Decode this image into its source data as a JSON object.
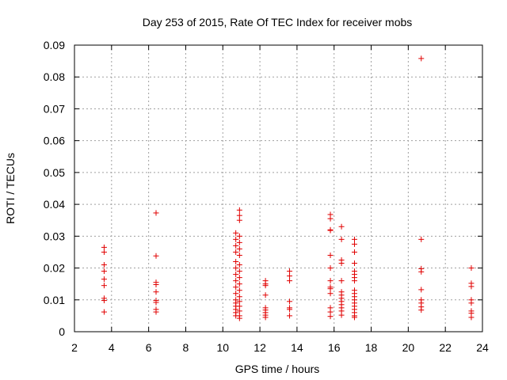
{
  "chart_data": {
    "type": "scatter",
    "title": "Day 253 of 2015, Rate Of TEC Index for receiver mobs",
    "xlabel": "GPS time / hours",
    "ylabel": "ROTI / TECUs",
    "xlim": [
      2,
      24
    ],
    "ylim": [
      0,
      0.09
    ],
    "x_ticks": [
      2,
      4,
      6,
      8,
      10,
      12,
      14,
      16,
      18,
      20,
      22,
      24
    ],
    "y_ticks": [
      0,
      0.01,
      0.02,
      0.03,
      0.04,
      0.05,
      0.06,
      0.07,
      0.08,
      0.09
    ],
    "x_tick_labels": [
      "2",
      "4",
      "6",
      "8",
      "10",
      "12",
      "14",
      "16",
      "18",
      "20",
      "22",
      "24"
    ],
    "y_tick_labels": [
      "0",
      "0.01",
      "0.02",
      "0.03",
      "0.04",
      "0.05",
      "0.06",
      "0.07",
      "0.08",
      "0.09"
    ],
    "grid": true,
    "marker": "+",
    "color": "#e00000",
    "series": [
      {
        "points": [
          [
            3.6,
            0.0265
          ],
          [
            3.6,
            0.025
          ],
          [
            3.6,
            0.021
          ],
          [
            3.6,
            0.019
          ],
          [
            3.6,
            0.0165
          ],
          [
            3.6,
            0.0145
          ],
          [
            3.6,
            0.0105
          ],
          [
            3.6,
            0.0098
          ],
          [
            3.6,
            0.0062
          ],
          [
            6.4,
            0.0373
          ],
          [
            6.4,
            0.0238
          ],
          [
            6.4,
            0.0155
          ],
          [
            6.4,
            0.0148
          ],
          [
            6.4,
            0.0125
          ],
          [
            6.4,
            0.0098
          ],
          [
            6.4,
            0.0092
          ],
          [
            6.4,
            0.007
          ],
          [
            6.4,
            0.0062
          ],
          [
            10.7,
            0.031
          ],
          [
            10.7,
            0.029
          ],
          [
            10.7,
            0.027
          ],
          [
            10.7,
            0.025
          ],
          [
            10.7,
            0.022
          ],
          [
            10.7,
            0.02
          ],
          [
            10.7,
            0.018
          ],
          [
            10.7,
            0.016
          ],
          [
            10.7,
            0.014
          ],
          [
            10.7,
            0.012
          ],
          [
            10.7,
            0.01
          ],
          [
            10.7,
            0.009
          ],
          [
            10.7,
            0.008
          ],
          [
            10.7,
            0.007
          ],
          [
            10.7,
            0.006
          ],
          [
            10.7,
            0.005
          ],
          [
            10.9,
            0.0382
          ],
          [
            10.9,
            0.0365
          ],
          [
            10.9,
            0.035
          ],
          [
            10.9,
            0.03
          ],
          [
            10.9,
            0.028
          ],
          [
            10.9,
            0.026
          ],
          [
            10.9,
            0.024
          ],
          [
            10.9,
            0.021
          ],
          [
            10.9,
            0.019
          ],
          [
            10.9,
            0.017
          ],
          [
            10.9,
            0.015
          ],
          [
            10.9,
            0.013
          ],
          [
            10.9,
            0.011
          ],
          [
            10.9,
            0.0095
          ],
          [
            10.9,
            0.008
          ],
          [
            10.9,
            0.0065
          ],
          [
            10.9,
            0.005
          ],
          [
            10.9,
            0.0042
          ],
          [
            12.3,
            0.016
          ],
          [
            12.3,
            0.015
          ],
          [
            12.3,
            0.0145
          ],
          [
            12.3,
            0.0115
          ],
          [
            12.3,
            0.0075
          ],
          [
            12.3,
            0.0068
          ],
          [
            12.3,
            0.006
          ],
          [
            12.3,
            0.0052
          ],
          [
            12.3,
            0.0045
          ],
          [
            13.6,
            0.019
          ],
          [
            13.6,
            0.0175
          ],
          [
            13.6,
            0.016
          ],
          [
            13.6,
            0.0095
          ],
          [
            13.6,
            0.0075
          ],
          [
            13.6,
            0.007
          ],
          [
            13.6,
            0.005
          ],
          [
            15.8,
            0.0368
          ],
          [
            15.8,
            0.0355
          ],
          [
            15.8,
            0.032
          ],
          [
            15.8,
            0.0318
          ],
          [
            15.8,
            0.024
          ],
          [
            15.8,
            0.02
          ],
          [
            15.8,
            0.016
          ],
          [
            15.8,
            0.014
          ],
          [
            15.8,
            0.0135
          ],
          [
            15.8,
            0.012
          ],
          [
            15.8,
            0.0075
          ],
          [
            15.8,
            0.0062
          ],
          [
            15.8,
            0.0048
          ],
          [
            16.4,
            0.033
          ],
          [
            16.4,
            0.029
          ],
          [
            16.4,
            0.0225
          ],
          [
            16.4,
            0.0215
          ],
          [
            16.4,
            0.016
          ],
          [
            16.4,
            0.0125
          ],
          [
            16.4,
            0.0115
          ],
          [
            16.4,
            0.0105
          ],
          [
            16.4,
            0.0095
          ],
          [
            16.4,
            0.0085
          ],
          [
            16.4,
            0.0075
          ],
          [
            16.4,
            0.0065
          ],
          [
            16.4,
            0.0052
          ],
          [
            17.1,
            0.029
          ],
          [
            17.1,
            0.0275
          ],
          [
            17.1,
            0.025
          ],
          [
            17.1,
            0.0215
          ],
          [
            17.1,
            0.019
          ],
          [
            17.1,
            0.018
          ],
          [
            17.1,
            0.017
          ],
          [
            17.1,
            0.016
          ],
          [
            17.1,
            0.013
          ],
          [
            17.1,
            0.012
          ],
          [
            17.1,
            0.011
          ],
          [
            17.1,
            0.01
          ],
          [
            17.1,
            0.009
          ],
          [
            17.1,
            0.008
          ],
          [
            17.1,
            0.007
          ],
          [
            17.1,
            0.006
          ],
          [
            17.1,
            0.005
          ],
          [
            17.1,
            0.0045
          ],
          [
            20.7,
            0.0858
          ],
          [
            20.7,
            0.029
          ],
          [
            20.7,
            0.0198
          ],
          [
            20.7,
            0.0188
          ],
          [
            20.7,
            0.0132
          ],
          [
            20.7,
            0.01
          ],
          [
            20.7,
            0.009
          ],
          [
            20.7,
            0.0078
          ],
          [
            20.7,
            0.0068
          ],
          [
            23.4,
            0.02
          ],
          [
            23.4,
            0.0152
          ],
          [
            23.4,
            0.0142
          ],
          [
            23.4,
            0.01
          ],
          [
            23.4,
            0.009
          ],
          [
            23.4,
            0.0065
          ],
          [
            23.4,
            0.0058
          ],
          [
            23.4,
            0.0045
          ]
        ]
      }
    ]
  }
}
